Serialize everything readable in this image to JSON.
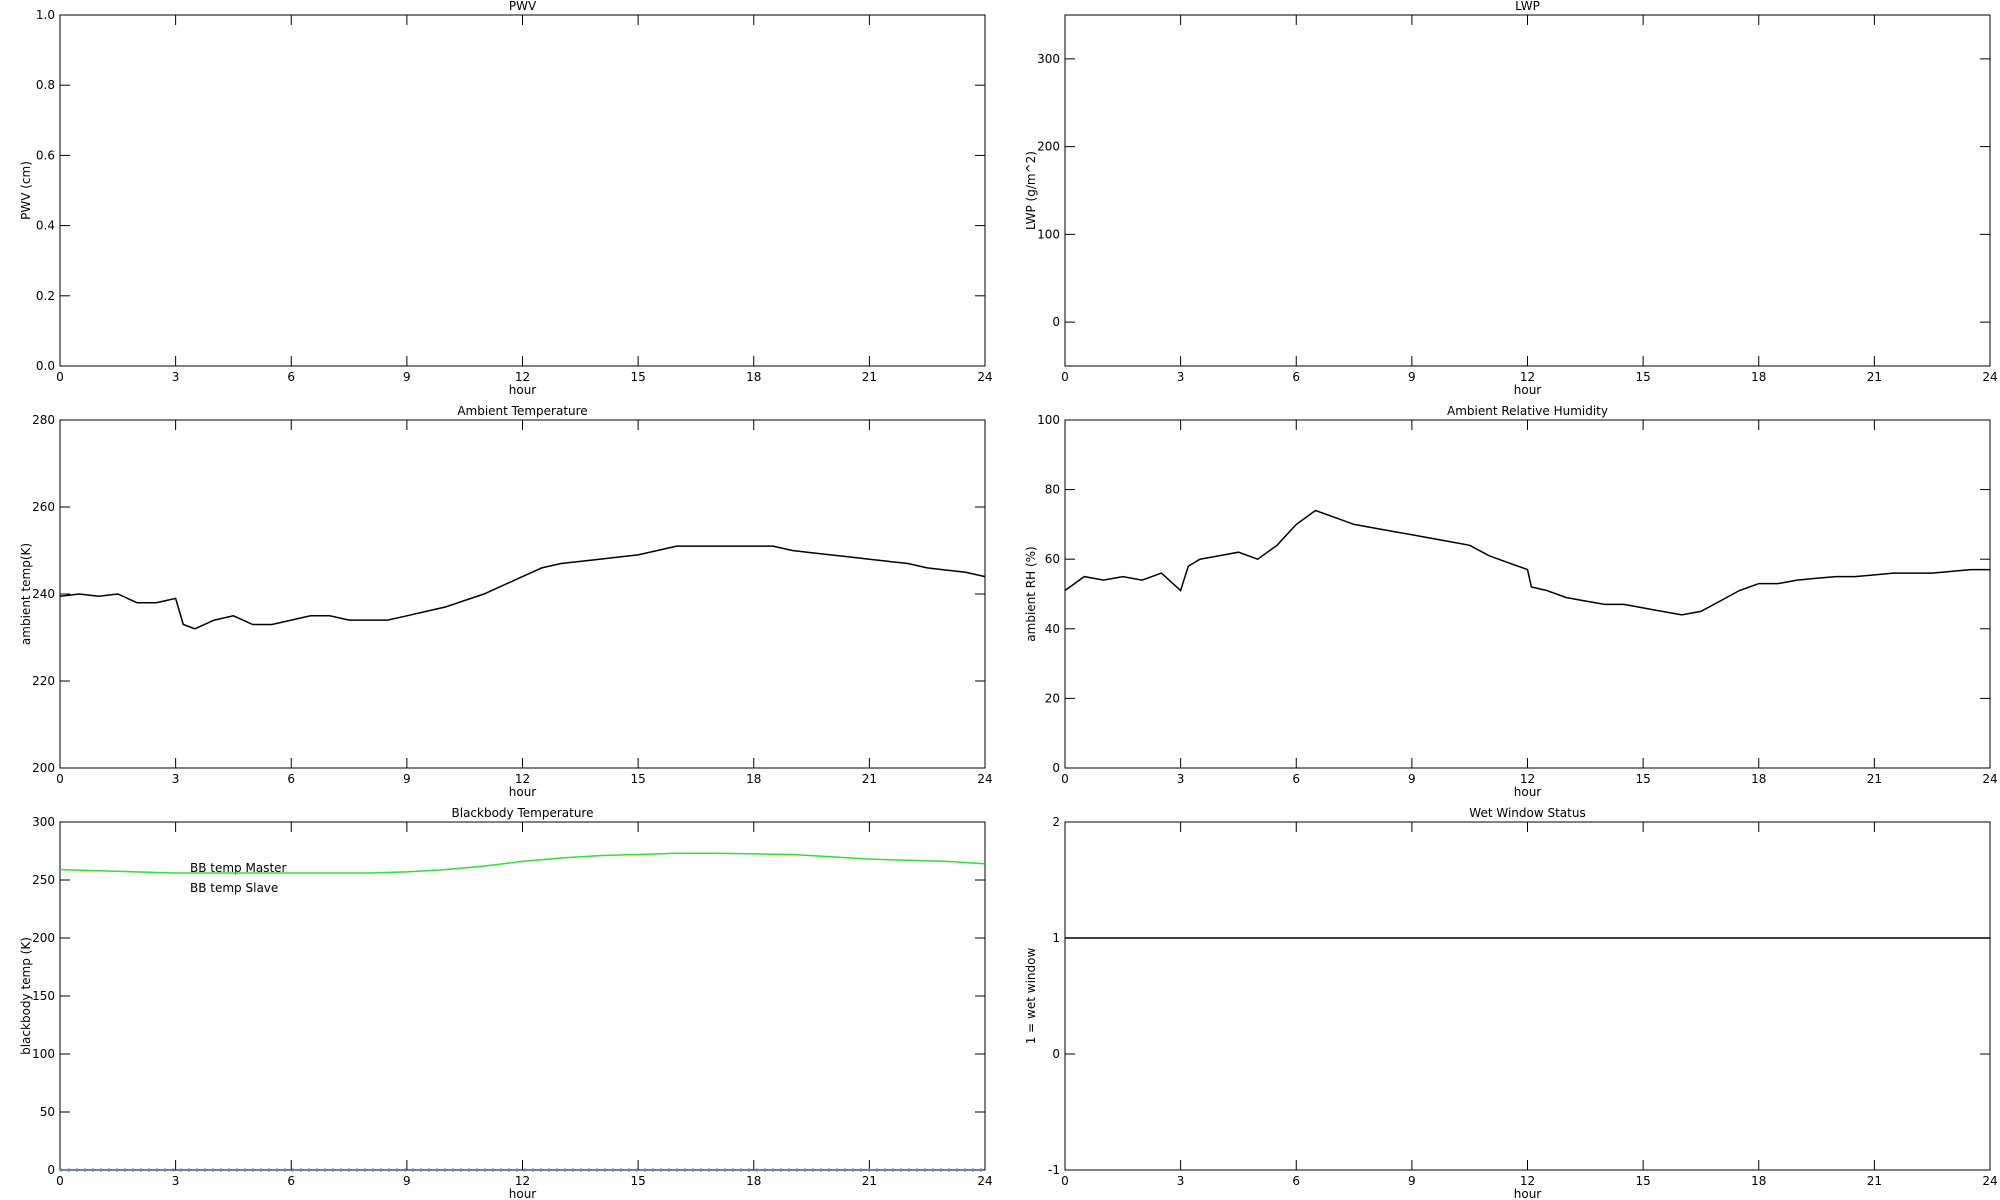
{
  "chart_data": [
    {
      "type": "line",
      "title": "PWV",
      "xlabel": "hour",
      "ylabel": "PWV (cm)",
      "xlim": [
        0,
        24
      ],
      "xticks": [
        0,
        3,
        6,
        9,
        12,
        15,
        18,
        21,
        24
      ],
      "ylim": [
        0,
        1
      ],
      "yticks": [
        {
          "value": 0,
          "label": "0.0"
        },
        0.2,
        0.4,
        0.6,
        0.8,
        {
          "value": 1,
          "label": "1.0"
        }
      ]
    },
    {
      "type": "line",
      "title": "LWP",
      "xlabel": "hour",
      "ylabel": "LWP (g/m^2)",
      "xlim": [
        0,
        24
      ],
      "xticks": [
        0,
        3,
        6,
        9,
        12,
        15,
        18,
        21,
        24
      ],
      "ylim": [
        -50,
        350
      ],
      "yticks": [
        0,
        100,
        200,
        300
      ]
    },
    {
      "type": "line",
      "title": "Ambient Temperature",
      "xlabel": "hour",
      "ylabel": "ambient temp(K)",
      "xlim": [
        0,
        24
      ],
      "xticks": [
        0,
        3,
        6,
        9,
        12,
        15,
        18,
        21,
        24
      ],
      "ylim": [
        200,
        280
      ],
      "yticks": [
        200,
        220,
        240,
        260,
        280
      ],
      "color": "#000000",
      "x": [
        0,
        0.5,
        1,
        1.5,
        2,
        2.5,
        3,
        3.2,
        3.5,
        4,
        4.5,
        5,
        5.5,
        6,
        6.5,
        7,
        7.5,
        8,
        8.5,
        9,
        9.5,
        10,
        10.5,
        11,
        11.5,
        12,
        12.5,
        13,
        13.5,
        14,
        14.5,
        15,
        15.5,
        16,
        16.5,
        17,
        17.5,
        18,
        18.5,
        19,
        19.5,
        20,
        20.5,
        21,
        21.5,
        22,
        22.5,
        23,
        23.5,
        24
      ],
      "values": [
        239.5,
        240,
        239.5,
        240,
        238,
        238,
        239,
        233,
        232,
        234,
        235,
        233,
        233,
        234,
        235,
        235,
        234,
        234,
        234,
        235,
        236,
        237,
        238.5,
        240,
        242,
        244,
        246,
        247,
        247.5,
        248,
        248.5,
        249,
        250,
        251,
        251,
        251,
        251,
        251,
        251,
        250,
        249.5,
        249,
        248.5,
        248,
        247.5,
        247,
        246,
        245.5,
        245,
        244
      ]
    },
    {
      "type": "line",
      "title": "Ambient Relative Humidity",
      "xlabel": "hour",
      "ylabel": "ambient RH (%)",
      "xlim": [
        0,
        24
      ],
      "xticks": [
        0,
        3,
        6,
        9,
        12,
        15,
        18,
        21,
        24
      ],
      "ylim": [
        0,
        100
      ],
      "yticks": [
        0,
        20,
        40,
        60,
        80,
        100
      ],
      "color": "#000000",
      "x": [
        0,
        0.5,
        1,
        1.5,
        2,
        2.5,
        3,
        3.2,
        3.5,
        4,
        4.5,
        5,
        5.5,
        6,
        6.5,
        7,
        7.5,
        8,
        8.5,
        9,
        9.5,
        10,
        10.5,
        11,
        11.5,
        12,
        12.1,
        12.5,
        13,
        13.5,
        14,
        14.5,
        15,
        15.5,
        16,
        16.5,
        17,
        17.5,
        18,
        18.5,
        19,
        19.5,
        20,
        20.5,
        21,
        21.5,
        22,
        22.5,
        23,
        23.5,
        24
      ],
      "values": [
        51,
        55,
        54,
        55,
        54,
        56,
        51,
        58,
        60,
        61,
        62,
        60,
        64,
        70,
        74,
        72,
        70,
        69,
        68,
        67,
        66,
        65,
        64,
        61,
        59,
        57,
        52,
        51,
        49,
        48,
        47,
        47,
        46,
        45,
        44,
        45,
        48,
        51,
        53,
        53,
        54,
        54.5,
        55,
        55,
        55.5,
        56,
        56,
        56,
        56.5,
        57,
        57
      ]
    },
    {
      "type": "line",
      "title": "Blackbody Temperature",
      "xlabel": "hour",
      "ylabel": "blackbody temp (K)",
      "xlim": [
        0,
        24
      ],
      "xticks": [
        0,
        3,
        6,
        9,
        12,
        15,
        18,
        21,
        24
      ],
      "ylim": [
        0,
        300
      ],
      "yticks": [
        0,
        50,
        100,
        150,
        200,
        250,
        300
      ],
      "legend": "upper left",
      "x": [
        0,
        3,
        6,
        8,
        9,
        10,
        11,
        12,
        13,
        14,
        15,
        16,
        17,
        18,
        19,
        20,
        21,
        22,
        23,
        24
      ],
      "series": [
        {
          "name": "BB temp Master",
          "color": "#3a8fe8",
          "style": "dotted",
          "values": [
            0,
            0,
            0,
            0,
            0,
            0,
            0,
            0,
            0,
            0,
            0,
            0,
            0,
            0,
            0,
            0,
            0,
            0,
            0,
            0
          ]
        },
        {
          "name": "BB temp Slave",
          "color": "#33dd33",
          "style": "solid",
          "values": [
            259,
            256,
            256,
            256,
            257,
            259,
            262,
            266,
            269,
            271,
            272,
            273,
            273,
            272.5,
            272,
            270,
            268,
            267,
            266,
            264
          ]
        }
      ]
    },
    {
      "type": "line",
      "title": "Wet Window Status",
      "xlabel": "hour",
      "ylabel": "1 = wet window",
      "xlim": [
        0,
        24
      ],
      "xticks": [
        0,
        3,
        6,
        9,
        12,
        15,
        18,
        21,
        24
      ],
      "ylim": [
        -1,
        2
      ],
      "yticks": [
        -1,
        0,
        1,
        2
      ],
      "color": "#000000",
      "x": [
        0,
        24
      ],
      "values": [
        1,
        1
      ]
    }
  ]
}
